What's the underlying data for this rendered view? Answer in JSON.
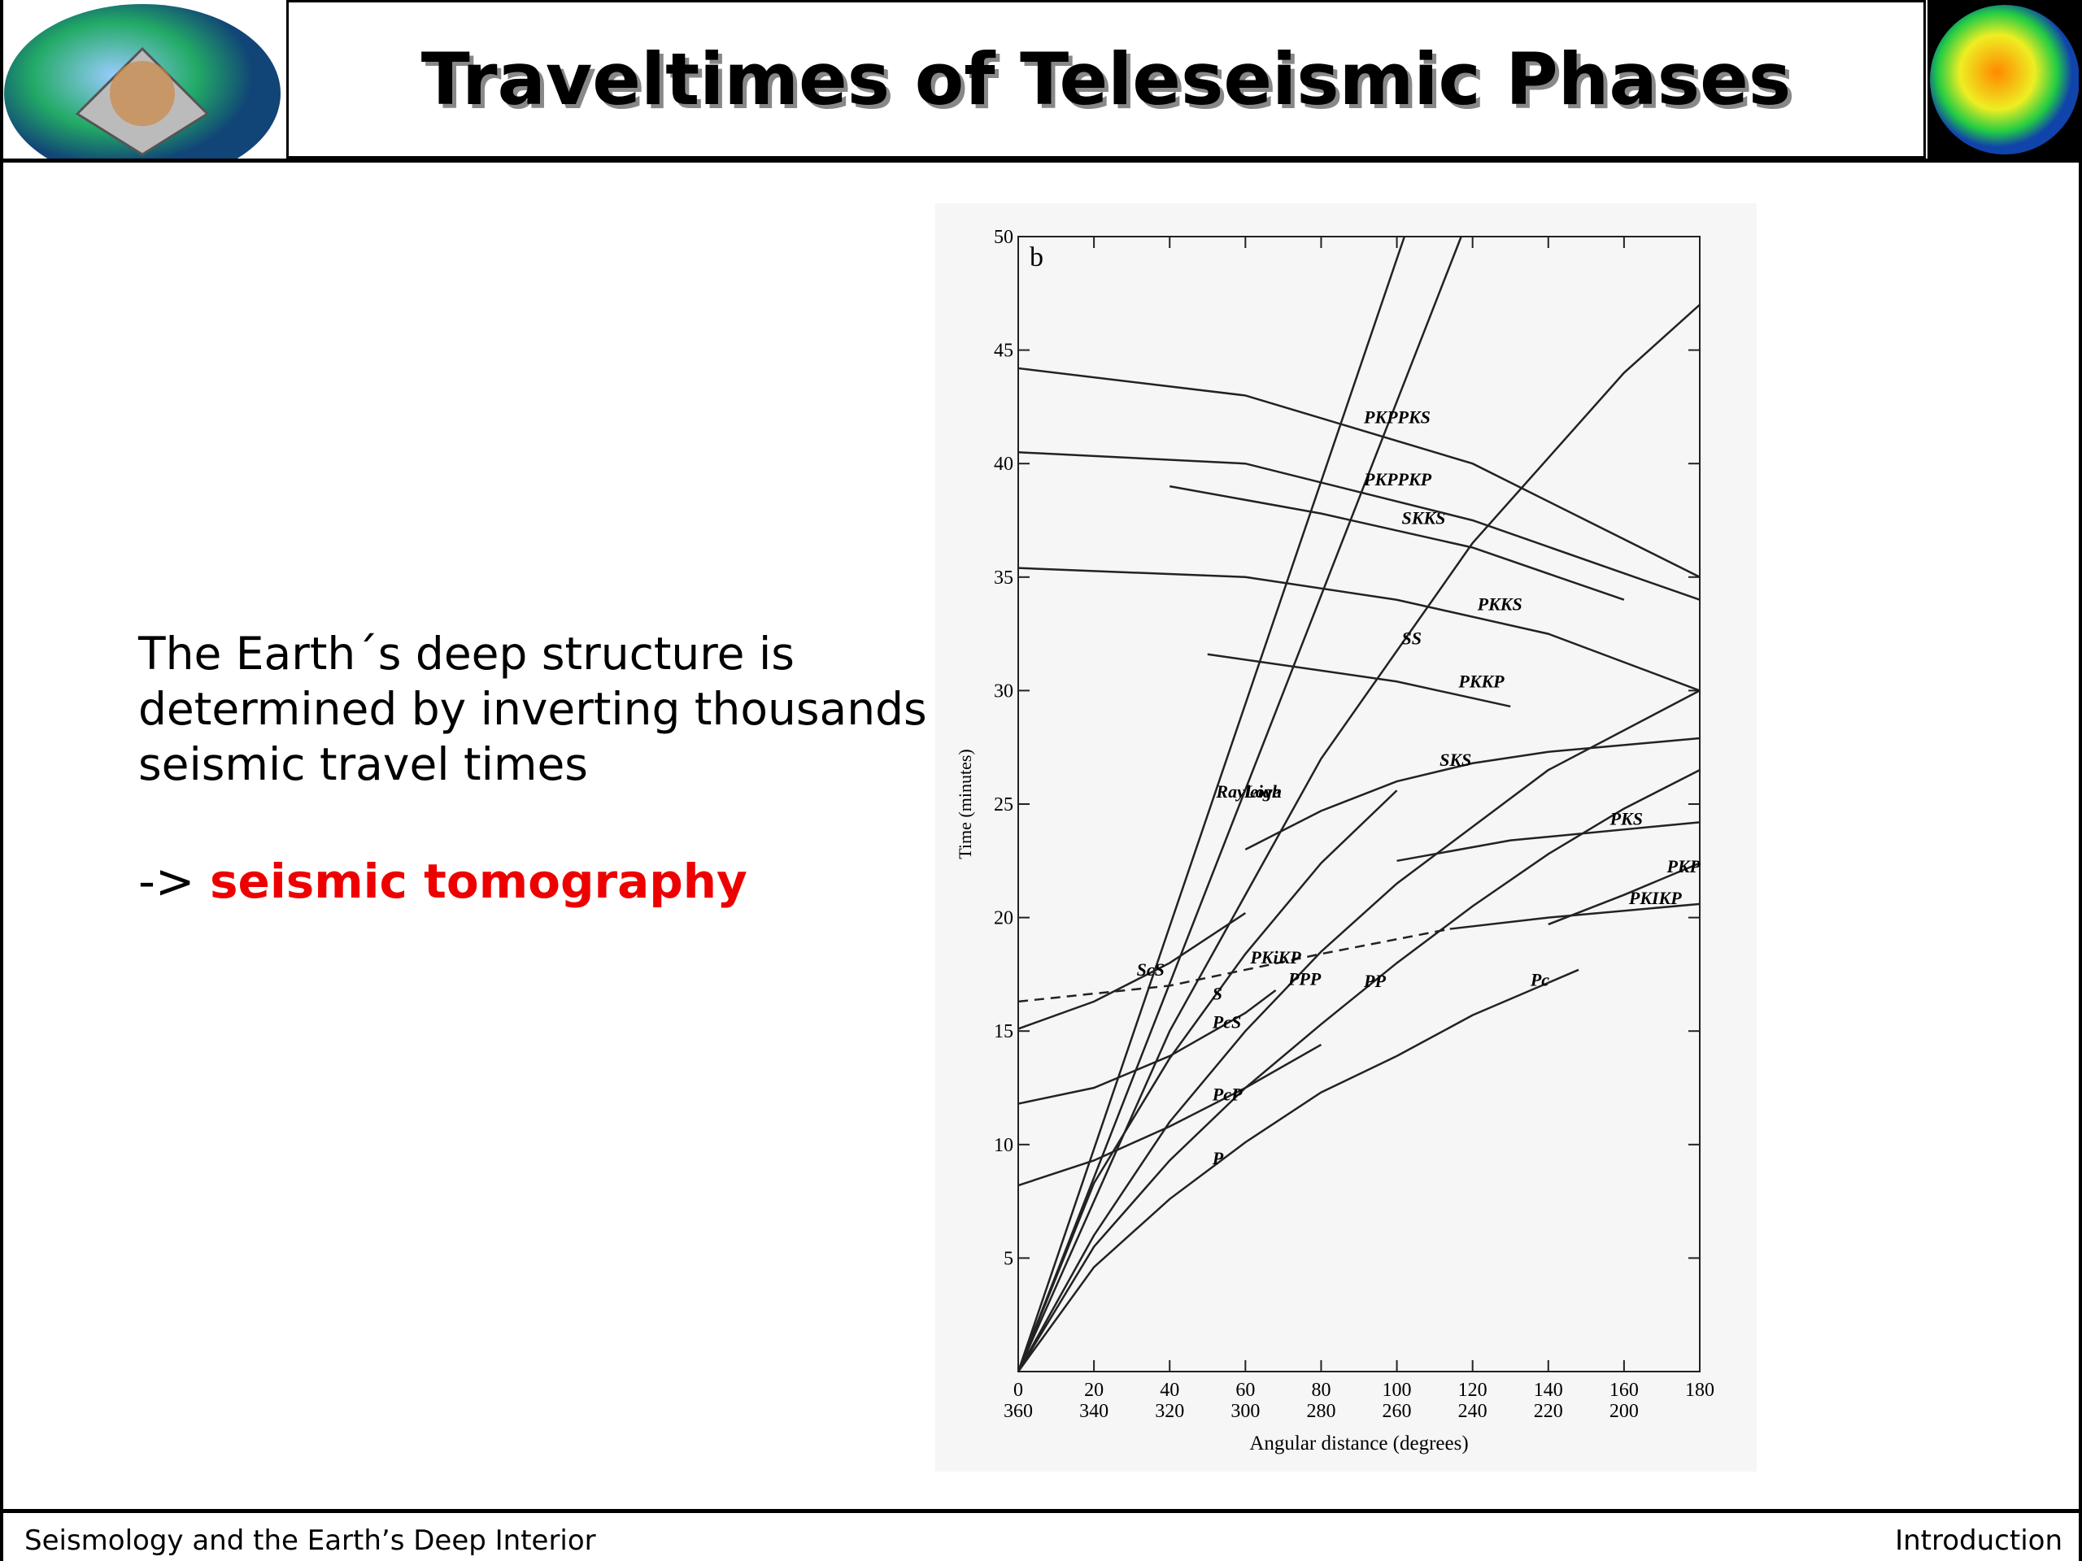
{
  "header": {
    "title": "Traveltimes of Teleseismic Phases"
  },
  "body": {
    "lines": [
      "The Earth´s deep structure is",
      "determined by inverting thousands of",
      "seismic travel times"
    ],
    "arrow": "->",
    "highlight": "seismic tomography"
  },
  "footer": {
    "left": "Seismology and the Earth’s Deep Interior",
    "right": "Introduction"
  },
  "chart_data": {
    "type": "line",
    "panel_label": "b",
    "x_label": "Angular distance (degrees)",
    "y_label": "Time (minutes)",
    "xlim": [
      0,
      180
    ],
    "ylim": [
      0,
      50
    ],
    "xticks": [
      0,
      20,
      40,
      60,
      80,
      100,
      120,
      140,
      160,
      180
    ],
    "xtick_sublabels": [
      360,
      340,
      320,
      300,
      280,
      260,
      240,
      220,
      200
    ],
    "yticks": [
      5,
      10,
      15,
      20,
      25,
      30,
      35,
      40,
      45,
      50
    ],
    "series": [
      {
        "name": "P",
        "color": "#222",
        "x": [
          0,
          20,
          40,
          60,
          80,
          100
        ],
        "values": [
          0,
          4.6,
          7.6,
          10.1,
          12.3,
          13.9
        ]
      },
      {
        "name": "Pc",
        "color": "#222",
        "x": [
          100,
          120,
          148
        ],
        "values": [
          13.9,
          15.7,
          17.7
        ]
      },
      {
        "name": "PP",
        "color": "#222",
        "x": [
          0,
          20,
          40,
          60,
          80,
          100,
          120,
          140,
          160,
          180
        ],
        "values": [
          0,
          5.5,
          9.3,
          12.5,
          15.3,
          18,
          20.5,
          22.8,
          24.8,
          26.5
        ]
      },
      {
        "name": "PPP",
        "color": "#222",
        "x": [
          0,
          20,
          40,
          60,
          80,
          100,
          140,
          180
        ],
        "values": [
          0,
          6,
          11,
          15,
          18.5,
          21.5,
          26.5,
          30
        ]
      },
      {
        "name": "S",
        "color": "#222",
        "x": [
          0,
          20,
          40,
          60,
          80,
          100
        ],
        "values": [
          0,
          8.3,
          13.8,
          18.4,
          22.4,
          25.6
        ]
      },
      {
        "name": "SS",
        "color": "#222",
        "x": [
          0,
          40,
          80,
          120,
          160,
          180
        ],
        "values": [
          0,
          15,
          27,
          36.5,
          44,
          47
        ]
      },
      {
        "name": "Rayleigh",
        "color": "#222",
        "x": [
          0,
          102
        ],
        "values": [
          0,
          50
        ]
      },
      {
        "name": "Love",
        "color": "#222",
        "x": [
          0,
          117
        ],
        "values": [
          0,
          50
        ]
      },
      {
        "name": "PcP",
        "color": "#222",
        "x": [
          0,
          20,
          40,
          60,
          80
        ],
        "values": [
          8.2,
          9.3,
          10.8,
          12.5,
          14.4
        ]
      },
      {
        "name": "ScS",
        "color": "#222",
        "x": [
          0,
          20,
          40,
          60
        ],
        "values": [
          15.1,
          16.3,
          18,
          20.2
        ]
      },
      {
        "name": "PcS",
        "color": "#222",
        "x": [
          0,
          20,
          40,
          60,
          68
        ],
        "values": [
          11.8,
          12.5,
          13.9,
          15.8,
          16.8
        ]
      },
      {
        "name": "PKiKP",
        "color": "#222",
        "style": "dashed",
        "x": [
          0,
          40,
          80,
          114
        ],
        "values": [
          16.3,
          17,
          18.4,
          19.5
        ]
      },
      {
        "name": "PKIKP",
        "color": "#222",
        "x": [
          114,
          140,
          180
        ],
        "values": [
          19.5,
          20,
          20.6
        ]
      },
      {
        "name": "SKS",
        "color": "#222",
        "x": [
          60,
          80,
          100,
          120,
          140,
          180
        ],
        "values": [
          23,
          24.7,
          26,
          26.8,
          27.3,
          27.9
        ]
      },
      {
        "name": "PKS",
        "color": "#222",
        "x": [
          100,
          130,
          180
        ],
        "values": [
          22.5,
          23.4,
          24.2
        ]
      },
      {
        "name": "PKP",
        "color": "#222",
        "x": [
          140,
          160,
          180
        ],
        "values": [
          19.7,
          21,
          22.4
        ]
      },
      {
        "name": "SKKS",
        "color": "#222",
        "x": [
          40,
          80,
          120,
          160
        ],
        "values": [
          39,
          37.8,
          36.3,
          34
        ]
      },
      {
        "name": "PKKS",
        "color": "#222",
        "x": [
          0,
          60,
          100,
          140,
          180
        ],
        "values": [
          35.4,
          35,
          34,
          32.5,
          30
        ]
      },
      {
        "name": "PKKP",
        "color": "#222",
        "x": [
          50,
          100,
          130
        ],
        "values": [
          31.6,
          30.4,
          29.3
        ]
      },
      {
        "name": "PKPPKP",
        "color": "#222",
        "x": [
          0,
          60,
          120,
          180
        ],
        "values": [
          40.5,
          40,
          37.5,
          34
        ]
      },
      {
        "name": "PKPPKS",
        "color": "#222",
        "x": [
          0,
          60,
          120,
          180
        ],
        "values": [
          44.2,
          43,
          40,
          35
        ]
      }
    ]
  }
}
